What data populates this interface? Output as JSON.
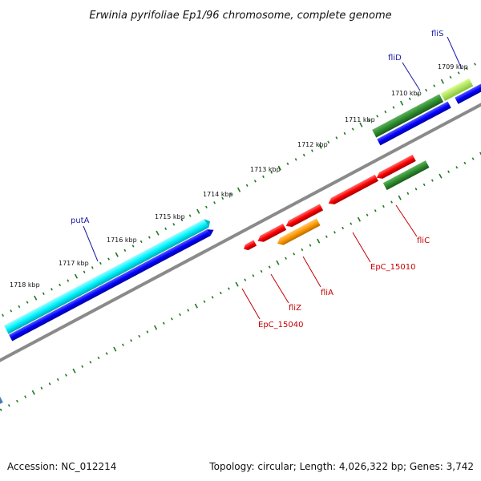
{
  "title": "Erwinia pyrifoliae Ep1/96 chromosome, complete genome",
  "footer": {
    "accession": "Accession: NC_012214",
    "summary": "Topology: circular; Length: 4,026,322 bp; Genes: 3,742"
  },
  "scale_labels": [
    "1709 kbp",
    "1710 kbp",
    "1711 kbp",
    "1712 kbp",
    "1713 kbp",
    "1714 kbp",
    "1715 kbp",
    "1716 kbp",
    "1717 kbp",
    "1718 kbp"
  ],
  "gene_labels": {
    "fliS": "fliS",
    "fliD": "fliD",
    "putA": "putA",
    "fliC": "fliC",
    "EpC_15010": "EpC_15010",
    "fliA": "fliA",
    "fliZ": "fliZ",
    "EpC_15040": "EpC_15040"
  },
  "colors": {
    "backbone": "#8a8a8a",
    "tick": "#1f7a1f",
    "forward_strand": "#0000ff",
    "cds_cyan": "#00ffff",
    "cds_green": "#2e8b2e",
    "cds_red": "#ff0000",
    "cds_orange": "#ff9900",
    "label_blue": "#1a1aa8",
    "label_red": "#c40000"
  }
}
